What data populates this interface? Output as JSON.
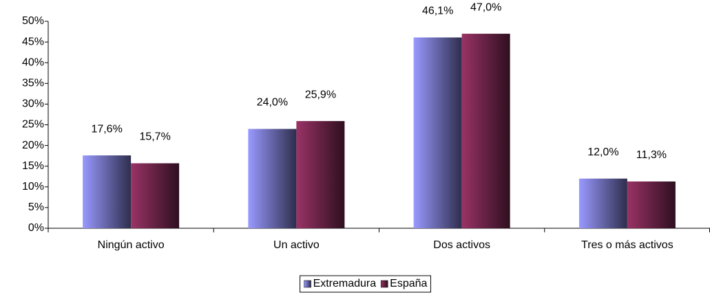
{
  "chart_data": {
    "type": "bar",
    "categories": [
      "Ningún activo",
      "Un activo",
      "Dos activos",
      "Tres o más activos"
    ],
    "series": [
      {
        "name": "Extremadura",
        "color": "#9999ff",
        "values": [
          17.6,
          24.0,
          46.1,
          12.0
        ],
        "value_labels": [
          "17,6%",
          "24,0%",
          "46,1%",
          "12,0%"
        ]
      },
      {
        "name": "España",
        "color": "#993366",
        "values": [
          15.7,
          25.9,
          47.0,
          11.3
        ],
        "value_labels": [
          "15,7%",
          "25,9%",
          "47,0%",
          "11,3%"
        ]
      }
    ],
    "ylim": [
      0,
      50
    ],
    "yticks": [
      {
        "value": 0,
        "label": "0%"
      },
      {
        "value": 5,
        "label": "5%"
      },
      {
        "value": 10,
        "label": "10%"
      },
      {
        "value": 15,
        "label": "15%"
      },
      {
        "value": 20,
        "label": "20%"
      },
      {
        "value": 25,
        "label": "25%"
      },
      {
        "value": 30,
        "label": "30%"
      },
      {
        "value": 35,
        "label": "35%"
      },
      {
        "value": 40,
        "label": "40%"
      },
      {
        "value": 45,
        "label": "45%"
      },
      {
        "value": 50,
        "label": "50%"
      }
    ],
    "grid": false,
    "legend": "bottom"
  }
}
